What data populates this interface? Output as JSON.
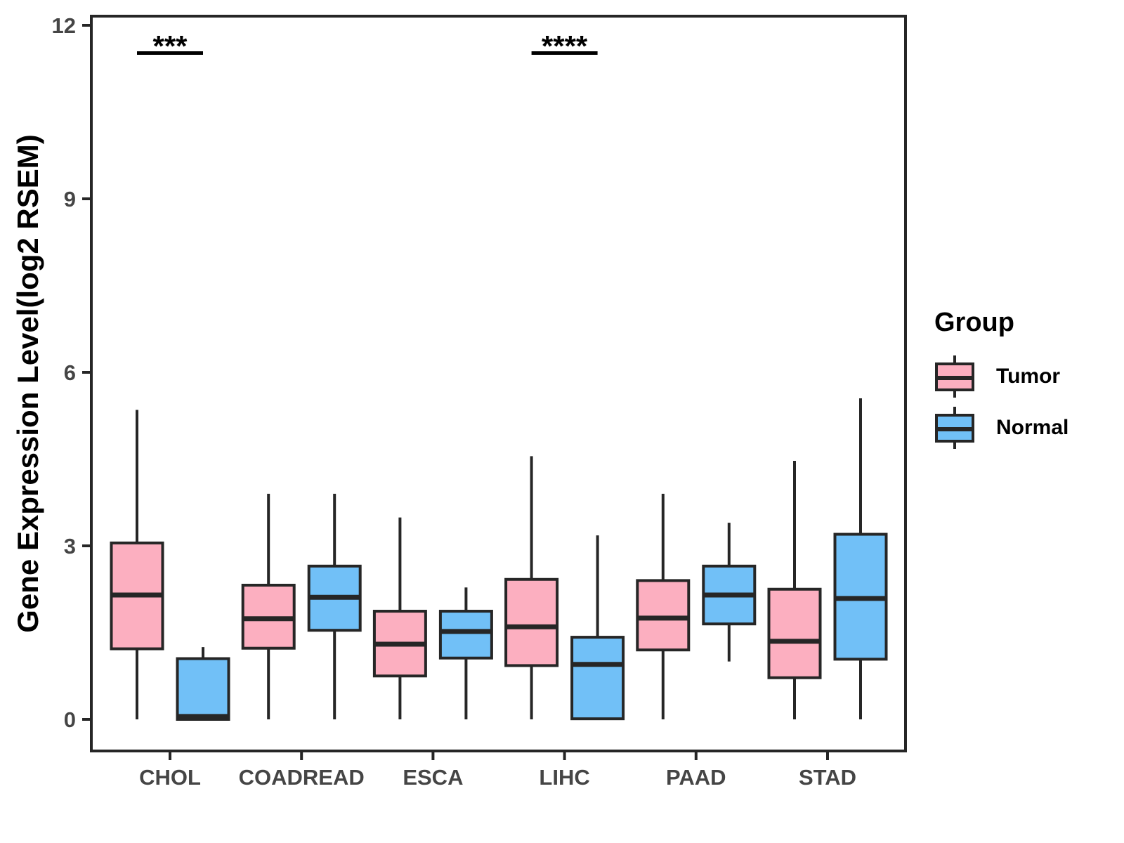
{
  "chart_data": {
    "type": "boxplot",
    "title": "",
    "xlabel": "",
    "ylabel": "Gene Expression Level(log2 RSEM)",
    "ylim": [
      0,
      12
    ],
    "yticks": [
      0,
      3,
      6,
      9,
      12
    ],
    "grid": false,
    "legend": {
      "title": "Group",
      "position": "right",
      "items": [
        {
          "label": "Tumor",
          "color": "#FCAFC0"
        },
        {
          "label": "Normal",
          "color": "#71C0F7"
        }
      ]
    },
    "categories": [
      "CHOL",
      "COADREAD",
      "ESCA",
      "LIHC",
      "PAAD",
      "STAD"
    ],
    "series": [
      {
        "name": "Tumor",
        "color": "#FCAFC0",
        "boxes": [
          {
            "category": "CHOL",
            "whisker_low": 0,
            "q1": 1.22,
            "median": 2.15,
            "q3": 3.05,
            "whisker_high": 5.35
          },
          {
            "category": "COADREAD",
            "whisker_low": 0,
            "q1": 1.23,
            "median": 1.74,
            "q3": 2.32,
            "whisker_high": 3.9
          },
          {
            "category": "ESCA",
            "whisker_low": 0,
            "q1": 0.75,
            "median": 1.3,
            "q3": 1.87,
            "whisker_high": 3.49
          },
          {
            "category": "LIHC",
            "whisker_low": 0,
            "q1": 0.93,
            "median": 1.6,
            "q3": 2.42,
            "whisker_high": 4.55
          },
          {
            "category": "PAAD",
            "whisker_low": 0,
            "q1": 1.2,
            "median": 1.75,
            "q3": 2.4,
            "whisker_high": 3.9
          },
          {
            "category": "STAD",
            "whisker_low": 0,
            "q1": 0.72,
            "median": 1.35,
            "q3": 2.25,
            "whisker_high": 4.47
          }
        ]
      },
      {
        "name": "Normal",
        "color": "#71C0F7",
        "boxes": [
          {
            "category": "CHOL",
            "whisker_low": 0,
            "q1": 0.0,
            "median": 0.05,
            "q3": 1.05,
            "whisker_high": 1.25
          },
          {
            "category": "COADREAD",
            "whisker_low": 0,
            "q1": 1.54,
            "median": 2.11,
            "q3": 2.65,
            "whisker_high": 3.9
          },
          {
            "category": "ESCA",
            "whisker_low": 0,
            "q1": 1.06,
            "median": 1.52,
            "q3": 1.87,
            "whisker_high": 2.28
          },
          {
            "category": "LIHC",
            "whisker_low": 0,
            "q1": 0.01,
            "median": 0.95,
            "q3": 1.42,
            "whisker_high": 3.18
          },
          {
            "category": "PAAD",
            "whisker_low": 1.0,
            "q1": 1.65,
            "median": 2.15,
            "q3": 2.65,
            "whisker_high": 3.4
          },
          {
            "category": "STAD",
            "whisker_low": 0,
            "q1": 1.04,
            "median": 2.09,
            "q3": 3.2,
            "whisker_high": 5.55
          }
        ]
      }
    ],
    "annotations": [
      {
        "category": "CHOL",
        "text": "***"
      },
      {
        "category": "LIHC",
        "text": "****"
      }
    ]
  }
}
